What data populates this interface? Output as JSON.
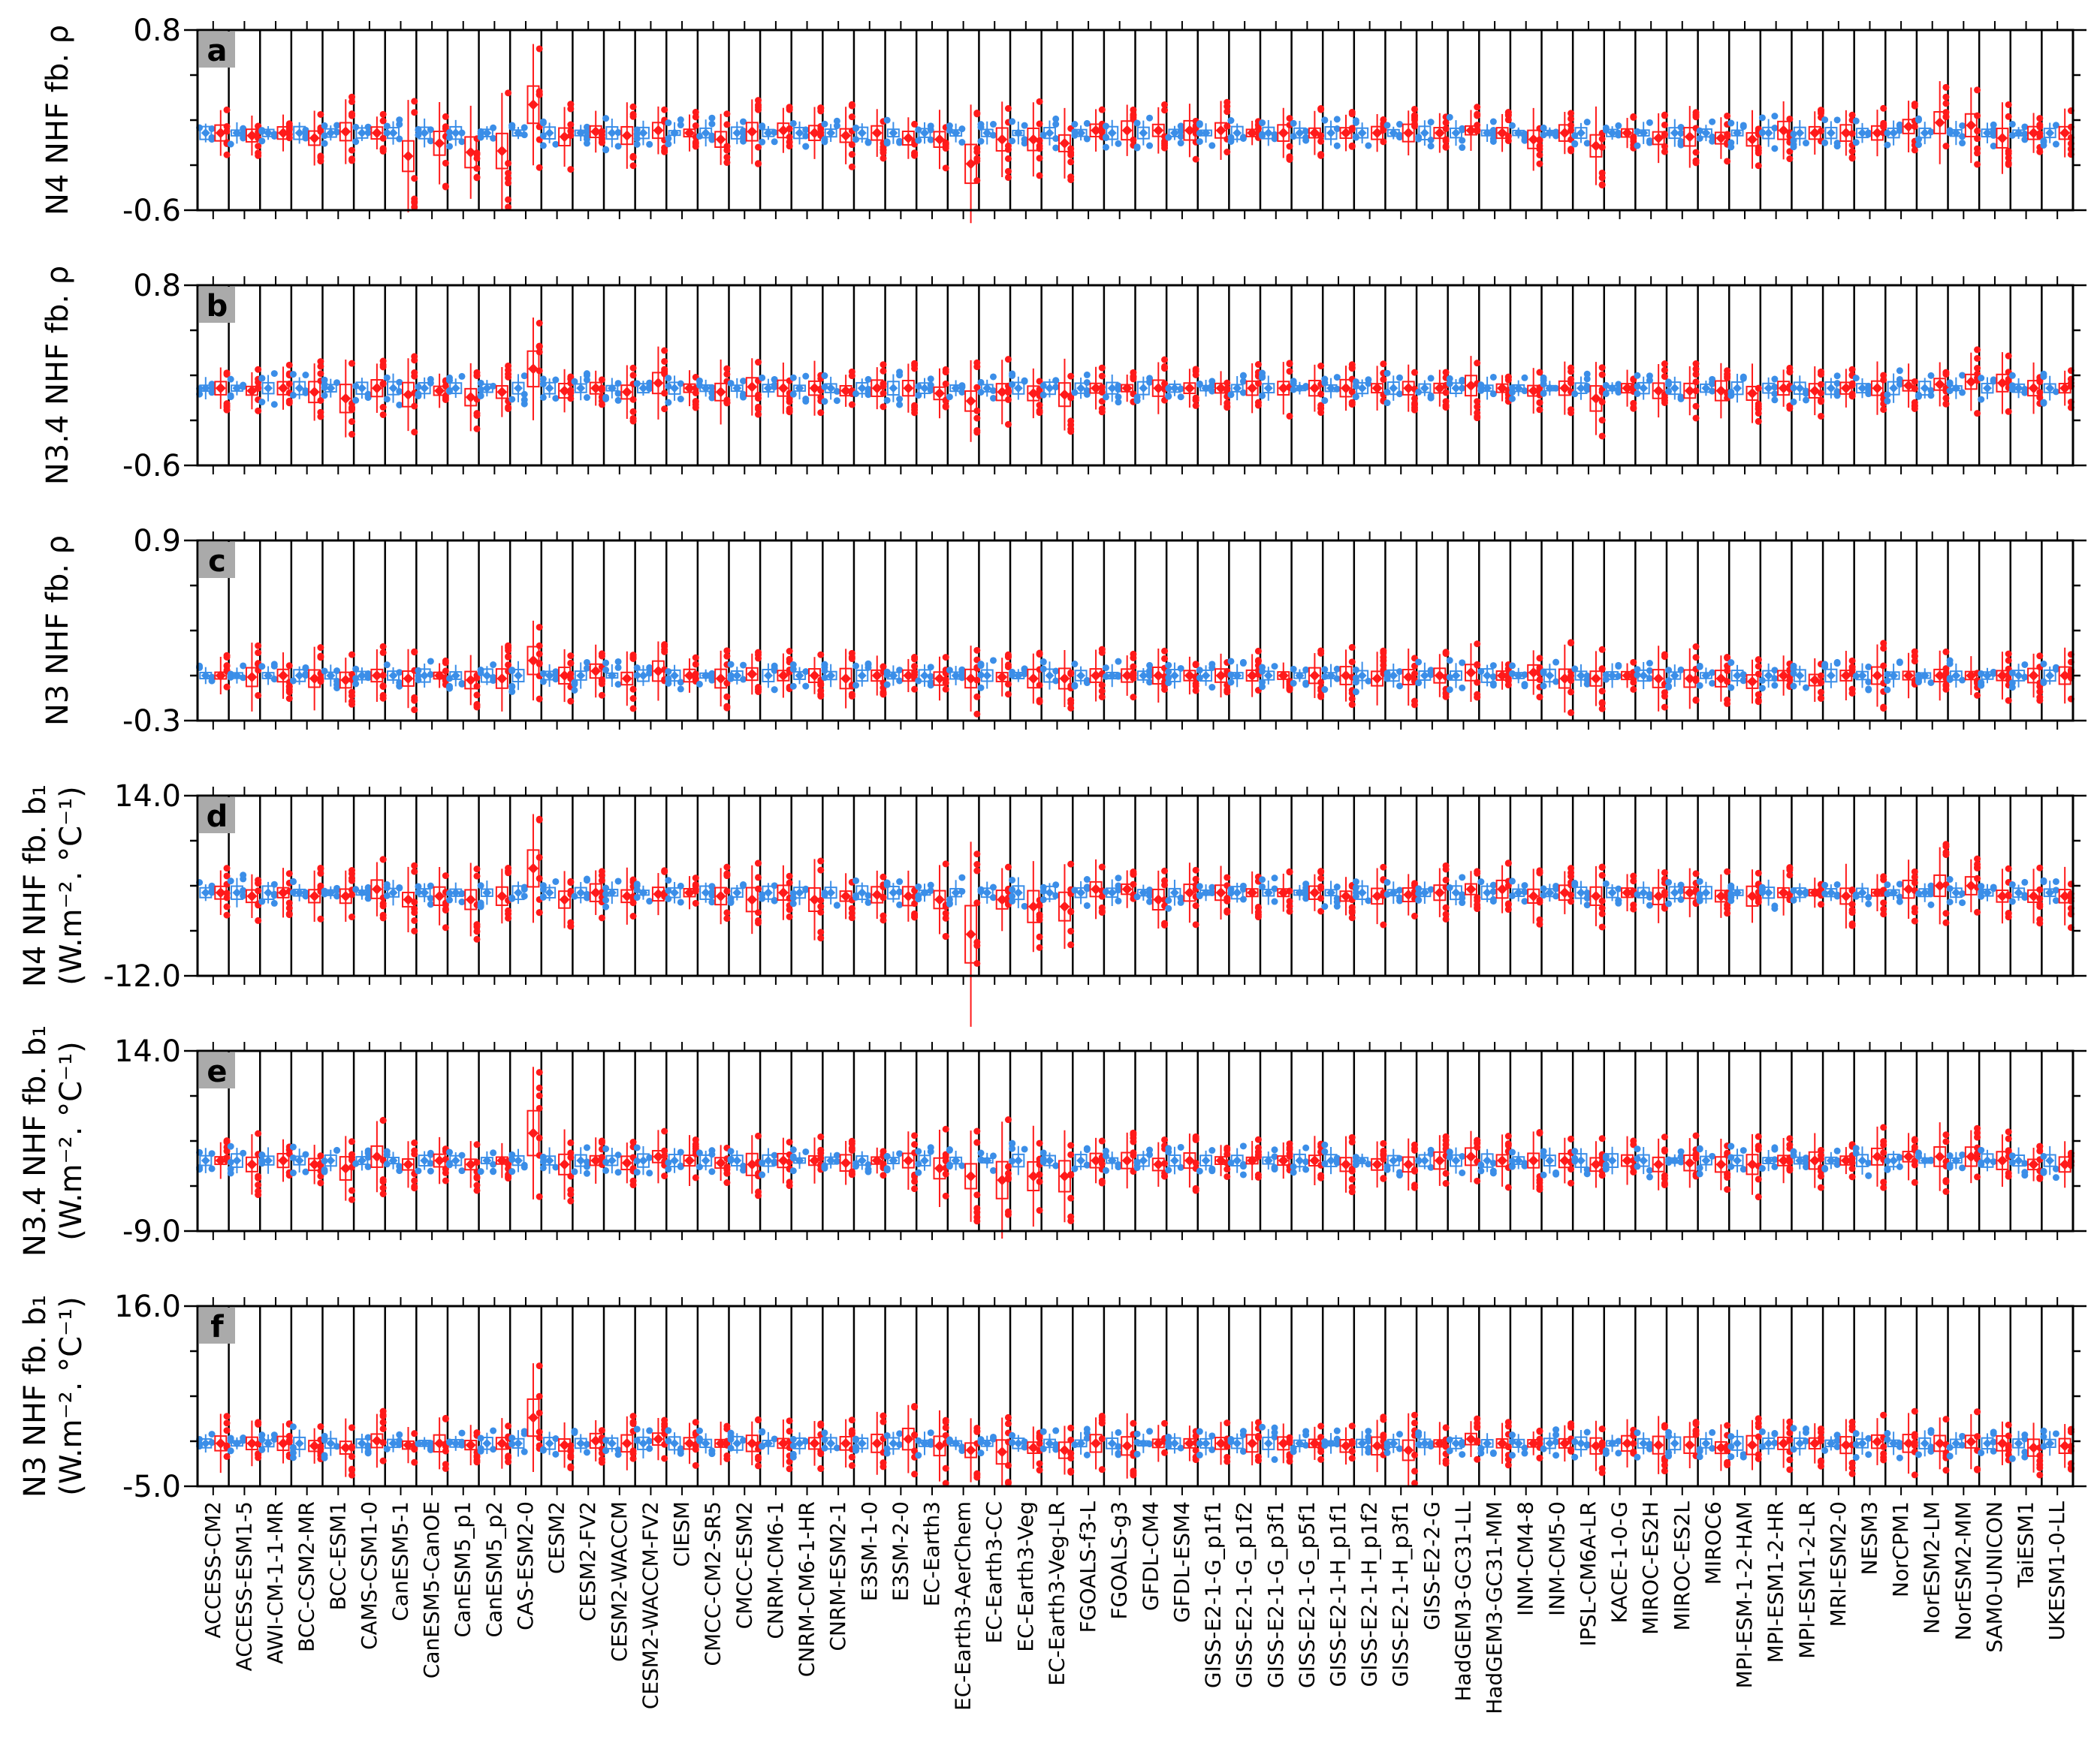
{
  "chart_data": {
    "type": "box",
    "models": [
      "ACCESS-CM2",
      "ACCESS-ESM1-5",
      "AWI-CM-1-1-MR",
      "BCC-CSM2-MR",
      "BCC-ESM1",
      "CAMS-CSM1-0",
      "CanESM5-1",
      "CanESM5-CanOE",
      "CanESM5_p1",
      "CanESM5_p2",
      "CAS-ESM2-0",
      "CESM2",
      "CESM2-FV2",
      "CESM2-WACCM",
      "CESM2-WACCM-FV2",
      "CIESM",
      "CMCC-CM2-SR5",
      "CMCC-ESM2",
      "CNRM-CM6-1",
      "CNRM-CM6-1-HR",
      "CNRM-ESM2-1",
      "E3SM-1-0",
      "E3SM-2-0",
      "EC-Earth3",
      "EC-Earth3-AerChem",
      "EC-Earth3-CC",
      "EC-Earth3-Veg",
      "EC-Earth3-Veg-LR",
      "FGOALS-f3-L",
      "FGOALS-g3",
      "GFDL-CM4",
      "GFDL-ESM4",
      "GISS-E2-1-G_p1f1",
      "GISS-E2-1-G_p1f2",
      "GISS-E2-1-G_p3f1",
      "GISS-E2-1-G_p5f1",
      "GISS-E2-1-H_p1f1",
      "GISS-E2-1-H_p1f2",
      "GISS-E2-1-H_p3f1",
      "GISS-E2-2-G",
      "HadGEM3-GC31-LL",
      "HadGEM3-GC31-MM",
      "INM-CM4-8",
      "INM-CM5-0",
      "IPSL-CM6A-LR",
      "KACE-1-0-G",
      "MIROC-ES2H",
      "MIROC-ES2L",
      "MIROC6",
      "MPI-ESM-1-2-HAM",
      "MPI-ESM1-2-HR",
      "MPI-ESM1-2-LR",
      "MRI-ESM2-0",
      "NESM3",
      "NorCPM1",
      "NorESM2-LM",
      "NorESM2-MM",
      "SAM0-UNICON",
      "TaiESM1",
      "UKESM1-0-LL"
    ],
    "highlight_model": "CAS-ESM2-0",
    "highlight_color": "#ffa500",
    "series_colors": {
      "blue": "#3b8ee8",
      "red": "#ff1a1a"
    },
    "panels": [
      {
        "letter": "a",
        "ylabel": "N4 NHF fb. ρ",
        "ylabel2": "",
        "ylim": [
          -0.6,
          0.8
        ],
        "yticks": [
          "0.8",
          "-0.6"
        ],
        "red_median": [
          0.0,
          -0.02,
          0.0,
          -0.04,
          0.01,
          0.0,
          -0.18,
          -0.08,
          -0.15,
          -0.14,
          0.22,
          -0.03,
          0.01,
          -0.02,
          0.02,
          0.0,
          -0.05,
          0.01,
          0.02,
          0.0,
          -0.02,
          0.0,
          -0.04,
          -0.05,
          -0.24,
          -0.05,
          -0.05,
          -0.08,
          0.02,
          0.02,
          0.02,
          0.02,
          0.02,
          0.0,
          0.0,
          0.0,
          0.0,
          0.0,
          0.0,
          0.0,
          0.02,
          0.0,
          -0.05,
          0.0,
          -0.1,
          0.0,
          -0.04,
          -0.03,
          -0.04,
          -0.05,
          0.02,
          0.0,
          0.0,
          0.0,
          0.05,
          0.08,
          0.06,
          -0.04,
          0.0,
          0.0
        ]
      },
      {
        "letter": "b",
        "ylabel": "N3.4 NHF fb. ρ",
        "ylabel2": "",
        "ylim": [
          -0.6,
          0.8
        ],
        "yticks": [
          "0.8",
          "-0.6"
        ],
        "red_median": [
          0.0,
          -0.02,
          0.0,
          -0.03,
          -0.08,
          0.0,
          -0.05,
          -0.02,
          -0.07,
          -0.03,
          0.15,
          -0.02,
          0.0,
          -0.03,
          0.04,
          0.0,
          -0.03,
          0.01,
          0.0,
          0.0,
          -0.02,
          0.0,
          0.0,
          -0.04,
          -0.1,
          -0.03,
          -0.04,
          -0.05,
          0.0,
          0.0,
          0.0,
          0.0,
          0.0,
          0.0,
          0.0,
          0.0,
          0.0,
          0.0,
          0.0,
          0.0,
          0.02,
          0.0,
          -0.02,
          0.0,
          -0.08,
          0.0,
          -0.02,
          -0.02,
          -0.02,
          -0.04,
          0.0,
          -0.02,
          0.0,
          0.0,
          0.02,
          0.03,
          0.05,
          0.04,
          0.0,
          0.0
        ]
      },
      {
        "letter": "c",
        "ylabel": "N3 NHF fb. ρ",
        "ylabel2": "",
        "ylim": [
          -0.3,
          0.9
        ],
        "yticks": [
          "0.9",
          "-0.3"
        ],
        "red_median": [
          0.0,
          -0.01,
          0.0,
          -0.02,
          -0.03,
          0.0,
          -0.02,
          0.0,
          -0.03,
          -0.02,
          0.1,
          0.0,
          0.03,
          -0.02,
          0.03,
          0.0,
          -0.02,
          0.01,
          0.0,
          0.0,
          -0.02,
          0.0,
          0.0,
          -0.02,
          -0.02,
          -0.01,
          -0.02,
          -0.02,
          0.0,
          0.0,
          0.0,
          0.0,
          0.0,
          0.0,
          0.0,
          0.0,
          0.0,
          -0.02,
          -0.01,
          0.0,
          0.02,
          0.0,
          0.02,
          -0.02,
          -0.02,
          0.0,
          -0.02,
          -0.02,
          -0.02,
          -0.04,
          0.0,
          -0.03,
          0.0,
          0.0,
          0.0,
          0.0,
          0.0,
          0.0,
          0.0,
          0.0
        ]
      },
      {
        "letter": "d",
        "ylabel": "N4 NHF fb. b₁",
        "ylabel2": "(W.m⁻². °C⁻¹)",
        "ylim": [
          -12.0,
          14.0
        ],
        "yticks": [
          "14.0",
          "-12.0"
        ],
        "red_median": [
          0.0,
          -0.5,
          0.0,
          -0.5,
          -0.5,
          0.5,
          -1.0,
          -0.5,
          -1.0,
          -0.5,
          3.5,
          -1.0,
          0.0,
          -0.5,
          -0.2,
          0.0,
          -0.5,
          -1.0,
          0.0,
          -1.0,
          -0.5,
          -0.3,
          -0.5,
          -1.0,
          -6.0,
          -1.0,
          -2.0,
          -2.0,
          0.5,
          0.5,
          -1.0,
          0.0,
          0.0,
          0.0,
          0.0,
          0.0,
          -0.5,
          -0.5,
          -0.3,
          0.0,
          0.5,
          0.5,
          -0.5,
          0.0,
          -0.5,
          0.0,
          -0.5,
          0.0,
          -0.5,
          -0.5,
          0.0,
          0.0,
          -0.5,
          0.0,
          0.5,
          1.0,
          1.0,
          -0.5,
          -0.5,
          -0.5
        ]
      },
      {
        "letter": "e",
        "ylabel": "N3.4 NHF fb. b₁",
        "ylabel2": "(W.m⁻². °C⁻¹)",
        "ylim": [
          -9.0,
          14.0
        ],
        "yticks": [
          "14.0",
          "-9.0"
        ],
        "red_median": [
          0.0,
          -0.5,
          0.0,
          -0.5,
          -1.0,
          0.5,
          -0.5,
          0.0,
          -0.5,
          0.0,
          3.5,
          -0.5,
          0.0,
          -0.3,
          0.5,
          0.0,
          -0.3,
          -0.5,
          0.0,
          0.0,
          -0.3,
          0.0,
          0.0,
          -1.0,
          -2.0,
          -2.5,
          -2.0,
          -2.0,
          0.0,
          0.0,
          -0.5,
          0.0,
          0.0,
          0.0,
          0.0,
          0.0,
          -0.5,
          -0.5,
          -0.5,
          0.0,
          0.5,
          0.0,
          0.0,
          0.0,
          -0.5,
          0.0,
          -0.5,
          -0.3,
          -0.5,
          -0.5,
          0.0,
          0.0,
          0.0,
          0.5,
          0.5,
          0.5,
          0.5,
          0.0,
          -0.5,
          -0.5
        ]
      },
      {
        "letter": "f",
        "ylabel": "N3 NHF fb. b₁",
        "ylabel2": "(W.m⁻². °C⁻¹)",
        "ylim": [
          -5.0,
          16.0
        ],
        "yticks": [
          "16.0",
          "-5.0"
        ],
        "red_median": [
          0.0,
          0.0,
          0.0,
          -0.3,
          -0.5,
          0.3,
          -0.2,
          0.0,
          -0.2,
          0.0,
          3.0,
          -0.2,
          0.3,
          0.0,
          0.5,
          0.0,
          0.0,
          0.0,
          0.0,
          0.0,
          0.0,
          0.0,
          0.5,
          -0.3,
          -0.8,
          -1.0,
          -0.5,
          -0.8,
          0.0,
          -0.3,
          0.0,
          0.0,
          0.0,
          0.0,
          0.0,
          0.0,
          -0.3,
          -0.3,
          -0.8,
          0.0,
          0.5,
          0.0,
          0.0,
          0.0,
          -0.3,
          0.0,
          -0.2,
          -0.2,
          -0.5,
          -0.2,
          0.0,
          0.0,
          -0.2,
          0.2,
          0.0,
          0.0,
          0.2,
          0.0,
          -0.5,
          -0.3
        ]
      }
    ]
  }
}
